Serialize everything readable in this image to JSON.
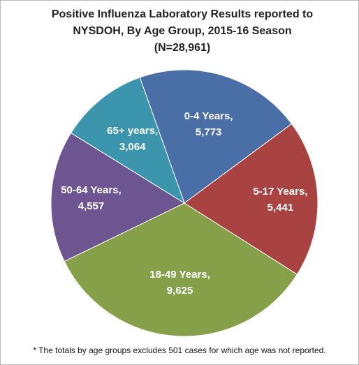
{
  "chart_data": {
    "type": "pie",
    "title": "Positive Influenza Laboratory Results reported to NYSDOH, By Age Group, 2015-16 Season",
    "subtitle": "(N=28,961)",
    "categories": [
      "0-4 Years,",
      "5-17 Years,",
      "18-49 Years,",
      "50-64 Years,",
      "65+ years,"
    ],
    "values": [
      5773,
      5441,
      9625,
      4557,
      3064
    ],
    "value_labels": [
      "5,773",
      "5,441",
      "9,625",
      "4,557",
      "3,064"
    ],
    "colors": [
      "#4a6ea6",
      "#a94341",
      "#86a04a",
      "#6d5591",
      "#3b96ad"
    ],
    "footnote": "* The totals by age groups excludes 501 cases for which age was not reported."
  }
}
